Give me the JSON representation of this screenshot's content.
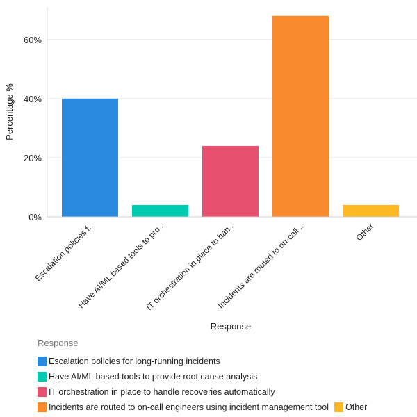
{
  "chart_data": {
    "type": "bar",
    "title": "",
    "xlabel": "Response",
    "ylabel": "Percentage %",
    "ylim": [
      0,
      71
    ],
    "yticks": [
      0,
      20,
      40,
      60
    ],
    "ytick_labels": [
      "0%",
      "20%",
      "40%",
      "60%"
    ],
    "grid": "horizontal",
    "categories": [
      "Escalation policies for long-running incidents",
      "Have AI/ML based tools to provide root cause analysis",
      "IT orchestration in place to handle recoveries automatically",
      "Incidents are routed to on-call engineers using incident management tool",
      "Other"
    ],
    "tick_labels": [
      "Escalation policies f..",
      "Have AI/ML based tools to pro..",
      "IT orchestration in place to han..",
      "Incidents are routed to on-call ..",
      "Other"
    ],
    "values": [
      40,
      4,
      24,
      68,
      4
    ],
    "colors": [
      "#2a8ae0",
      "#00cbb1",
      "#e8506f",
      "#f8892c",
      "#fdb924"
    ],
    "legend": {
      "title": "Response",
      "placement": "bottom-left"
    }
  }
}
